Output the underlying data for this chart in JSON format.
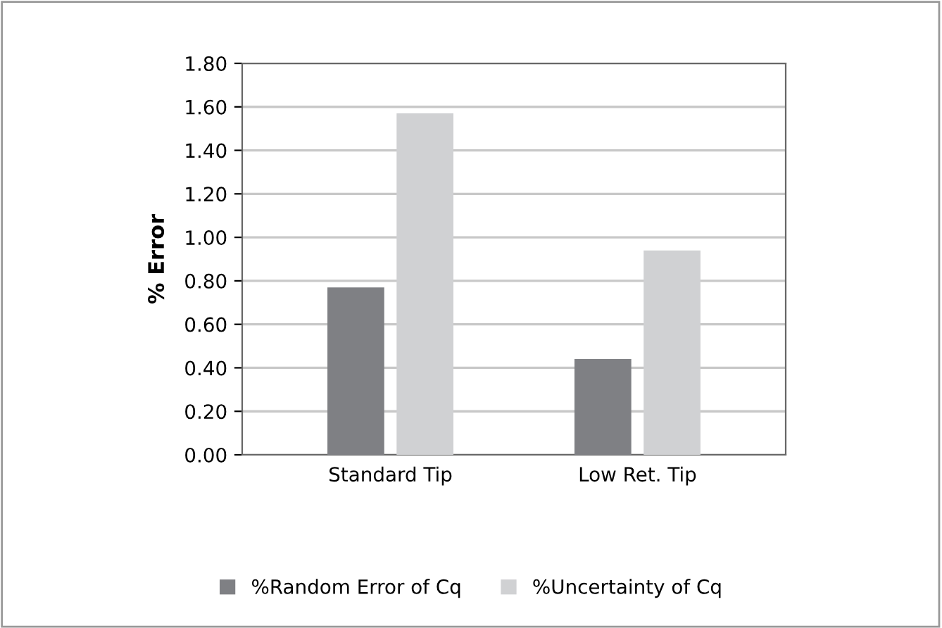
{
  "chart_data": {
    "type": "bar",
    "ylabel": "% Error",
    "categories": [
      "Standard Tip",
      "Low Ret. Tip"
    ],
    "series": [
      {
        "name": "%Random Error of Cq",
        "color": "#7f8084",
        "values": [
          0.77,
          0.44
        ]
      },
      {
        "name": "%Uncertainty of Cq",
        "color": "#d0d1d3",
        "values": [
          1.57,
          0.94
        ]
      }
    ],
    "ylim": [
      0,
      1.8
    ],
    "yticks": [
      {
        "value": 0,
        "label": "0.00"
      },
      {
        "value": 0.2,
        "label": "0.20"
      },
      {
        "value": 0.4,
        "label": "0.40"
      },
      {
        "value": 0.6,
        "label": "0.60"
      },
      {
        "value": 0.8,
        "label": "0.80"
      },
      {
        "value": 1.0,
        "label": "1.00"
      },
      {
        "value": 1.2,
        "label": "1.20"
      },
      {
        "value": 1.4,
        "label": "1.40"
      },
      {
        "value": 1.6,
        "label": "1.60"
      },
      {
        "value": 1.8,
        "label": "1.80"
      }
    ],
    "grid": "y",
    "legend": "bottom"
  }
}
